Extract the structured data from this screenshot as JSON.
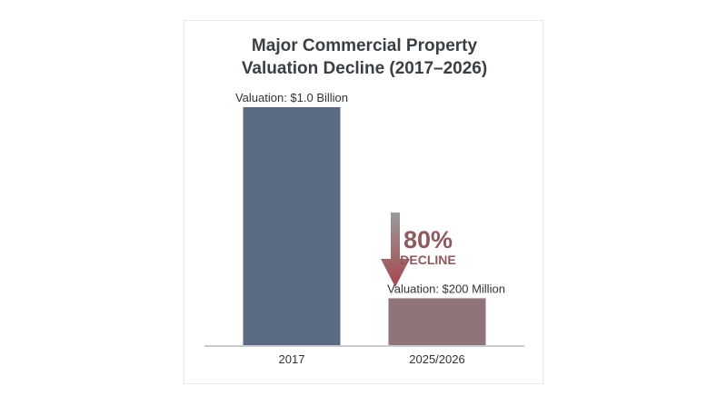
{
  "chart_data": {
    "type": "bar",
    "title_lines": [
      "Major Commercial Property",
      "Valuation Decline (2017–2026)"
    ],
    "categories": [
      "2017",
      "2025/2026"
    ],
    "values": [
      1.0,
      0.2
    ],
    "value_unit": "Billion USD",
    "data_labels": [
      "Valuation: $1.0 Billion",
      "Valuation: $200 Million"
    ],
    "ylim": [
      0,
      1.0
    ],
    "grid": false,
    "legend": "none",
    "annotation": {
      "percent": "80%",
      "word": "DECLINE",
      "arrow_direction": "down"
    },
    "colors": {
      "bar_2017": "#5b6b84",
      "bar_2026": "#8f7479",
      "axis": "#c9ccd0",
      "annotation": "#8e5a5e",
      "arrow_top": "#9a9a9a",
      "arrow_bottom": "#a5484d"
    }
  }
}
